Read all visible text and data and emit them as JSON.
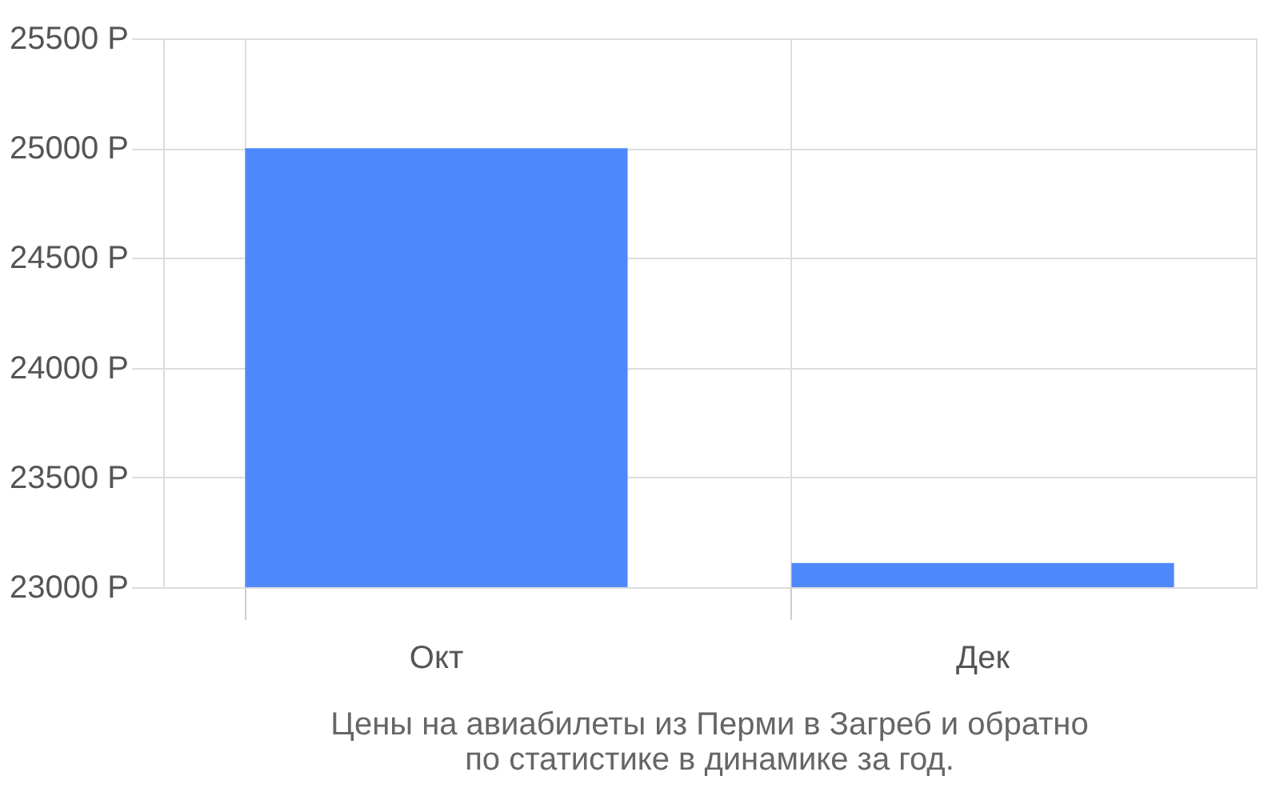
{
  "chart_data": {
    "type": "bar",
    "categories": [
      "Окт",
      "Дек"
    ],
    "values": [
      25000,
      23110
    ],
    "color": "#4e89fb",
    "ylim": [
      23000,
      25500
    ],
    "yticks": [
      {
        "value": 23000,
        "label": "23000 Р"
      },
      {
        "value": 23500,
        "label": "23500 Р"
      },
      {
        "value": 24000,
        "label": "24000 Р"
      },
      {
        "value": 24500,
        "label": "24500 Р"
      },
      {
        "value": 25000,
        "label": "25000 Р"
      },
      {
        "value": 25500,
        "label": "25500 Р"
      }
    ],
    "grid": true,
    "annotations": [
      "Цены на авиабилеты из Перми в Загреб и обратно",
      "по статистике в динамике за год."
    ]
  }
}
